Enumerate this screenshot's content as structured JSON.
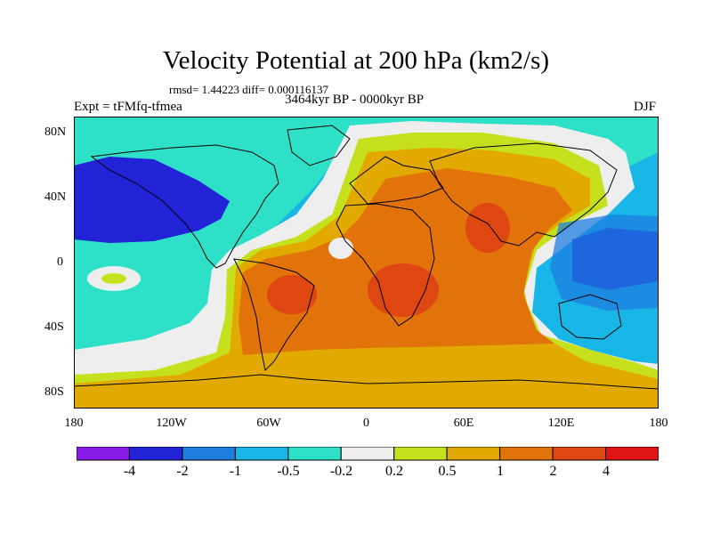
{
  "header": {
    "title": "Velocity Potential at 200 hPa (km2/s)",
    "stats": "rmsd= 1.44223 diff= 0.000116137",
    "experiment": "Expt = tFMfq-tfmea",
    "period": "3464kyr BP - 0000kyr BP",
    "season": "DJF"
  },
  "map": {
    "x_ticks": [
      "180",
      "120W",
      "60W",
      "0",
      "60E",
      "120E",
      "180"
    ],
    "y_ticks": [
      "80N",
      "40N",
      "0",
      "40S",
      "80S"
    ]
  },
  "colorbar": {
    "labels": [
      "-4",
      "-2",
      "-1",
      "-0.5",
      "-0.2",
      "0.2",
      "0.5",
      "1",
      "2",
      "4"
    ],
    "colors": [
      "#8a1be8",
      "#2222d6",
      "#1e7ee0",
      "#17b6e6",
      "#2ee0c8",
      "#eeeeee",
      "#c6e01e",
      "#e2aa00",
      "#e2720a",
      "#de4712",
      "#e01414"
    ]
  },
  "palette": {
    "ocean_bg": "#17b6e6",
    "land_lines": "#000000"
  }
}
